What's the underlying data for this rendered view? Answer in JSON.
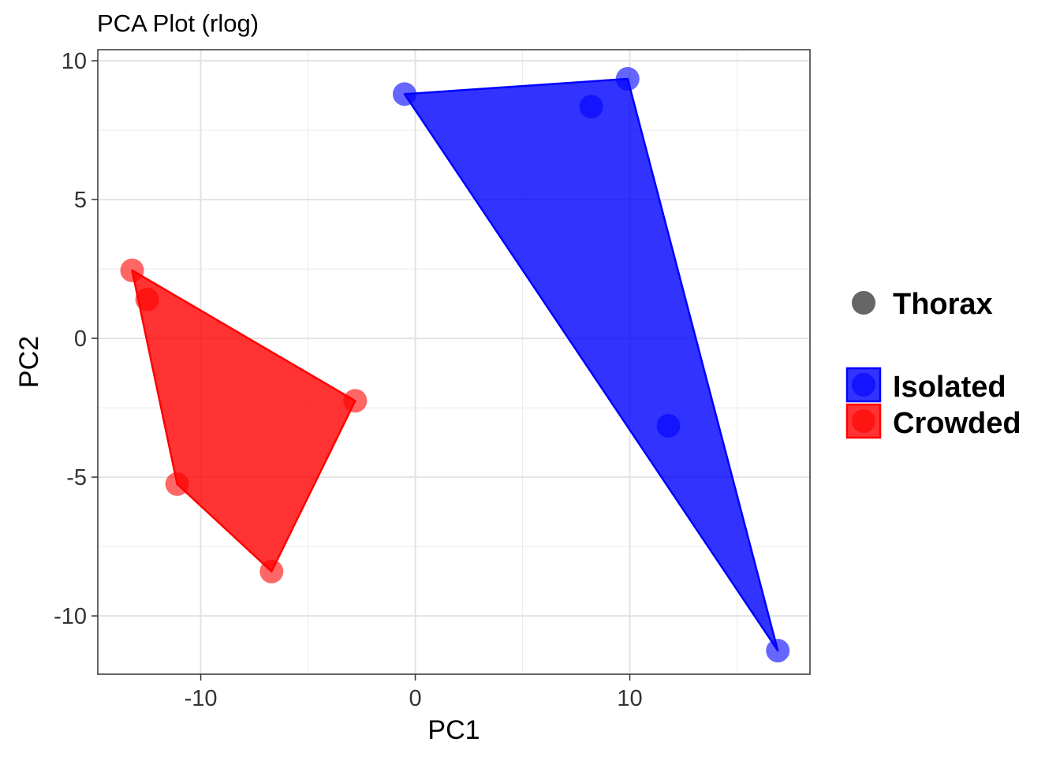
{
  "chart_data": {
    "type": "scatter",
    "title": "PCA Plot (rlog)",
    "xlabel": "PC1",
    "ylabel": "PC2",
    "xlim": [
      -14.8,
      18.4
    ],
    "ylim": [
      -12.1,
      10.4
    ],
    "xticks": [
      -10,
      0,
      10
    ],
    "xtick_labels": [
      "-10",
      "0",
      "10"
    ],
    "yticks": [
      -10,
      -5,
      0,
      5,
      10
    ],
    "ytick_labels": [
      "-10",
      "-5",
      "0",
      "5",
      "10"
    ],
    "grid": true,
    "legend_position": "right",
    "shape_legend": {
      "label": "Thorax",
      "color": "#666666"
    },
    "series": [
      {
        "name": "Isolated",
        "color": "#0000ff",
        "points": [
          {
            "x": -0.5,
            "y": 8.8
          },
          {
            "x": 8.2,
            "y": 8.35
          },
          {
            "x": 9.9,
            "y": 9.35
          },
          {
            "x": 11.8,
            "y": -3.15
          },
          {
            "x": 16.9,
            "y": -11.25
          }
        ],
        "hull": [
          {
            "x": -0.5,
            "y": 8.8
          },
          {
            "x": 9.9,
            "y": 9.35
          },
          {
            "x": 16.9,
            "y": -11.25
          }
        ]
      },
      {
        "name": "Crowded",
        "color": "#ff0000",
        "points": [
          {
            "x": -13.2,
            "y": 2.45
          },
          {
            "x": -12.5,
            "y": 1.4
          },
          {
            "x": -11.1,
            "y": -5.25
          },
          {
            "x": -6.7,
            "y": -8.4
          },
          {
            "x": -2.8,
            "y": -2.25
          }
        ],
        "hull": [
          {
            "x": -13.2,
            "y": 2.45
          },
          {
            "x": -2.8,
            "y": -2.25
          },
          {
            "x": -6.7,
            "y": -8.4
          },
          {
            "x": -11.1,
            "y": -5.25
          }
        ]
      }
    ]
  }
}
